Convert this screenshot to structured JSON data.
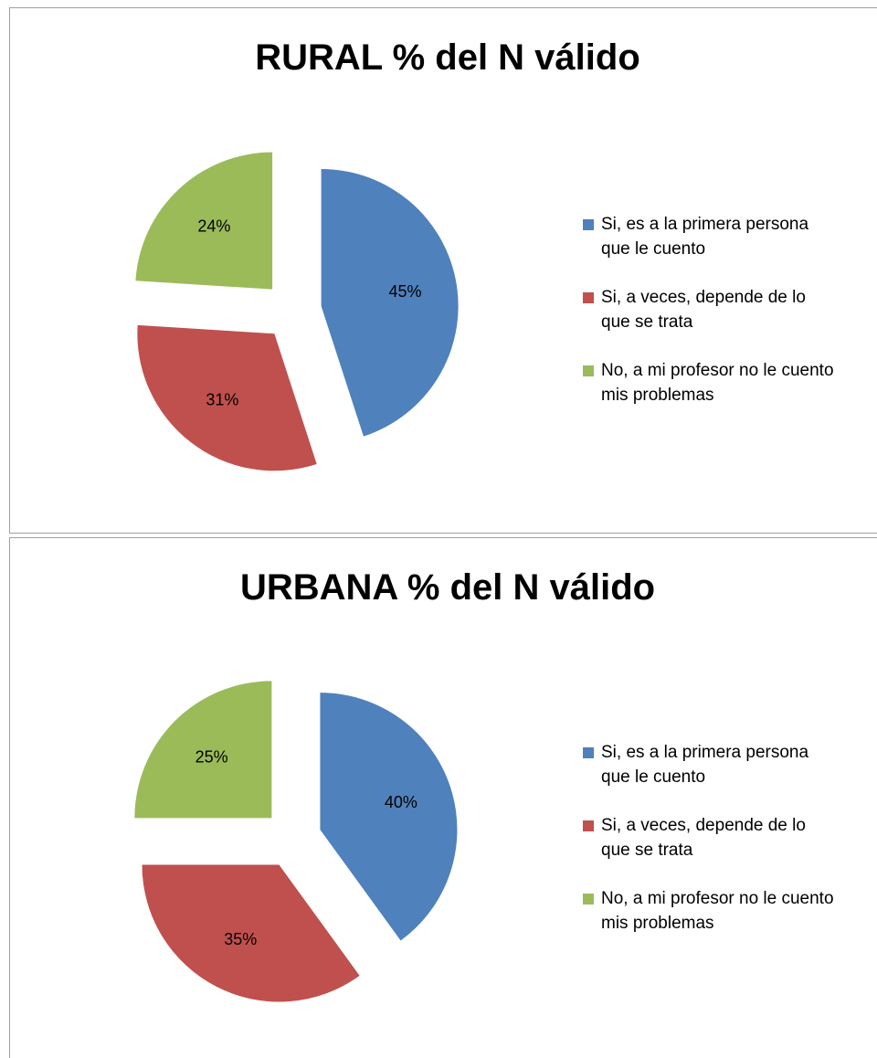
{
  "chart_data": [
    {
      "type": "pie",
      "title": "RURAL % del N válido",
      "categories": [
        "Si, es a la primera persona que le cuento",
        "Si, a veces, depende de lo que se trata",
        "No, a mi profesor no le cuento mis problemas"
      ],
      "values": [
        45,
        31,
        24
      ],
      "value_labels": [
        "45%",
        "31%",
        "24%"
      ],
      "colors": [
        "#4f81bd",
        "#c0504d",
        "#9bbb59"
      ],
      "legend": "right"
    },
    {
      "type": "pie",
      "title": "URBANA % del N válido",
      "categories": [
        "Si, es a la primera persona que le cuento",
        "Si, a veces, depende de lo que se trata",
        "No, a mi profesor no le cuento mis problemas"
      ],
      "values": [
        40,
        35,
        25
      ],
      "value_labels": [
        "40%",
        "35%",
        "25%"
      ],
      "colors": [
        "#4f81bd",
        "#c0504d",
        "#9bbb59"
      ],
      "legend": "right"
    }
  ]
}
